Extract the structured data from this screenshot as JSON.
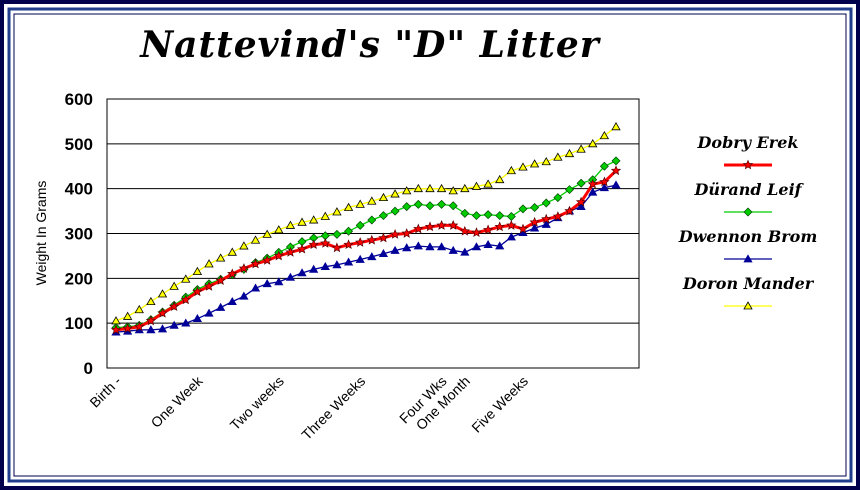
{
  "colors": {
    "frame": "#00004d",
    "frame_inner": "#1f3d8c",
    "plot_border": "#000000",
    "grid": "#000000"
  },
  "chart_data": {
    "type": "line",
    "title": "Nattevind's \"D\" Litter",
    "xlabel": "",
    "ylabel": "Weight In Grams",
    "ylim": [
      0,
      600
    ],
    "yticks": [
      0,
      100,
      200,
      300,
      400,
      500,
      600
    ],
    "grid": true,
    "legend_position": "right",
    "x_count": 44,
    "x_tick_labels": [
      {
        "index": 0,
        "label": "Birth -"
      },
      {
        "index": 7,
        "label": "One Week"
      },
      {
        "index": 14,
        "label": "Two weeks"
      },
      {
        "index": 21,
        "label": "Three Weeks"
      },
      {
        "index": 28,
        "label": "Four Wks"
      },
      {
        "index": 30,
        "label": "One Month"
      },
      {
        "index": 35,
        "label": "Five Weeks"
      }
    ],
    "series": [
      {
        "name": "Dobry Erek",
        "color": "#ff0000",
        "marker": "star",
        "values": [
          85,
          88,
          92,
          105,
          122,
          137,
          152,
          170,
          182,
          195,
          210,
          222,
          232,
          240,
          250,
          258,
          265,
          275,
          278,
          268,
          275,
          280,
          285,
          290,
          298,
          300,
          310,
          315,
          318,
          318,
          305,
          302,
          308,
          315,
          318,
          310,
          325,
          332,
          338,
          350,
          370,
          410,
          415,
          440
        ]
      },
      {
        "name": "Dürand Leif",
        "color": "#00cc00",
        "marker": "diamond",
        "values": [
          90,
          92,
          95,
          108,
          125,
          140,
          158,
          175,
          188,
          198,
          208,
          220,
          235,
          245,
          258,
          270,
          282,
          290,
          295,
          298,
          305,
          318,
          330,
          340,
          350,
          360,
          365,
          362,
          365,
          362,
          345,
          340,
          342,
          340,
          338,
          355,
          358,
          368,
          380,
          398,
          412,
          420,
          450,
          462
        ]
      },
      {
        "name": "Dwennon Brom",
        "color": "#000099",
        "marker": "triangle",
        "values": [
          80,
          82,
          85,
          85,
          87,
          95,
          100,
          110,
          122,
          135,
          148,
          160,
          178,
          188,
          192,
          202,
          212,
          220,
          226,
          230,
          236,
          242,
          248,
          255,
          262,
          268,
          272,
          270,
          270,
          262,
          258,
          270,
          275,
          272,
          292,
          302,
          312,
          320,
          335,
          350,
          360,
          392,
          402,
          408
        ]
      },
      {
        "name": "Doron Mander",
        "color": "#ffff00",
        "marker": "open-triangle",
        "values": [
          105,
          115,
          130,
          148,
          165,
          182,
          198,
          215,
          232,
          245,
          258,
          272,
          285,
          298,
          308,
          318,
          325,
          330,
          338,
          348,
          358,
          365,
          372,
          380,
          388,
          395,
          400,
          400,
          400,
          395,
          400,
          405,
          410,
          420,
          440,
          448,
          455,
          460,
          470,
          478,
          488,
          500,
          518,
          538
        ]
      }
    ]
  }
}
